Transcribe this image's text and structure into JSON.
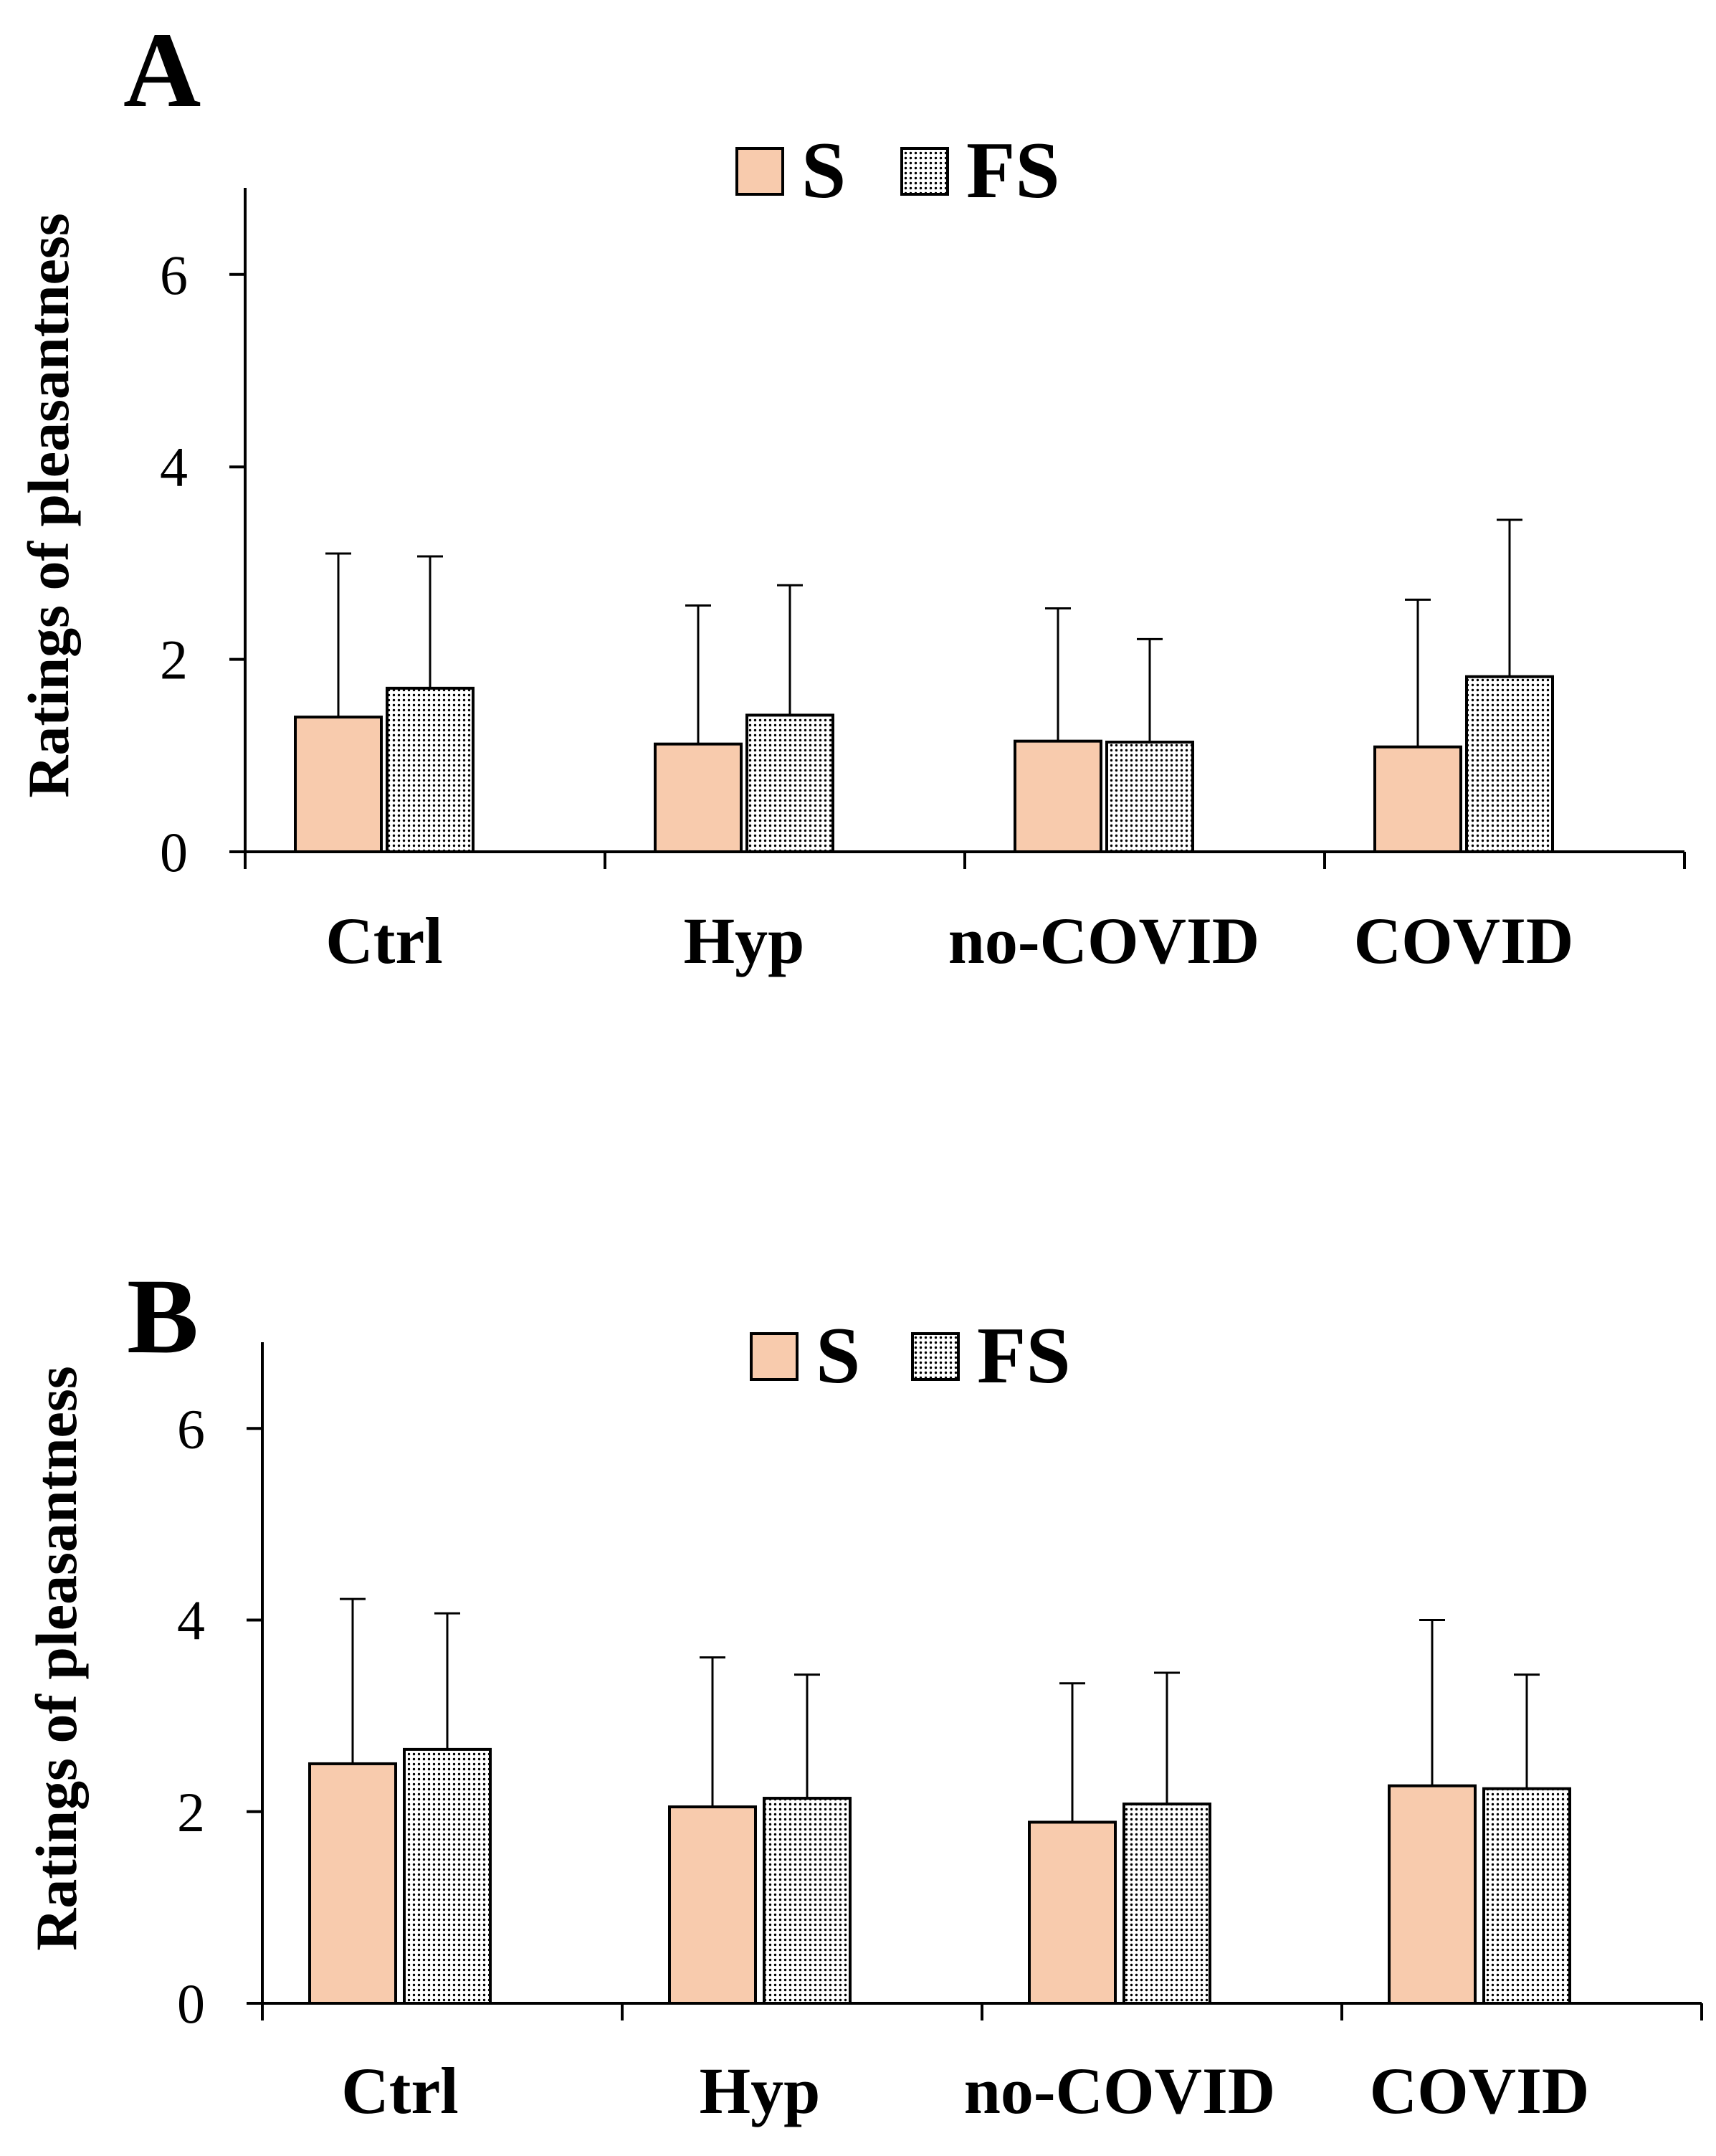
{
  "colors": {
    "s_fill": "#f8cbad",
    "fs_dot": "#000000",
    "fs_bg": "#ffffff",
    "axis": "#000000"
  },
  "legend": {
    "s_label": "S",
    "fs_label": "FS"
  },
  "chart_data": [
    {
      "type": "bar",
      "panel_label": "A",
      "title": "",
      "xlabel": "",
      "ylabel": "Ratings of pleasantness",
      "ylim": [
        0,
        6.9
      ],
      "yticks": [
        0,
        2,
        4,
        6
      ],
      "categories": [
        "Ctrl",
        "Hyp",
        "no-COVID",
        "COVID"
      ],
      "series": [
        {
          "name": "S",
          "values": [
            1.4,
            1.12,
            1.15,
            1.09
          ],
          "error_upper": [
            3.1,
            2.56,
            2.53,
            2.62
          ]
        },
        {
          "name": "FS",
          "values": [
            1.7,
            1.42,
            1.14,
            1.82
          ],
          "error_upper": [
            3.07,
            2.77,
            2.21,
            3.45
          ]
        }
      ],
      "legend_position": "top-center",
      "grid": false
    },
    {
      "type": "bar",
      "panel_label": "B",
      "title": "",
      "xlabel": "",
      "ylabel": "Ratings of pleasantness",
      "ylim": [
        0,
        6.9
      ],
      "yticks": [
        0,
        2,
        4,
        6
      ],
      "categories": [
        "Ctrl",
        "Hyp",
        "no-COVID",
        "COVID"
      ],
      "series": [
        {
          "name": "S",
          "values": [
            2.5,
            2.05,
            1.89,
            2.27
          ],
          "error_upper": [
            4.22,
            3.61,
            3.34,
            4.0
          ]
        },
        {
          "name": "FS",
          "values": [
            2.65,
            2.14,
            2.08,
            2.24
          ],
          "error_upper": [
            4.07,
            3.43,
            3.45,
            3.43
          ]
        }
      ],
      "legend_position": "top-center",
      "grid": false
    }
  ]
}
